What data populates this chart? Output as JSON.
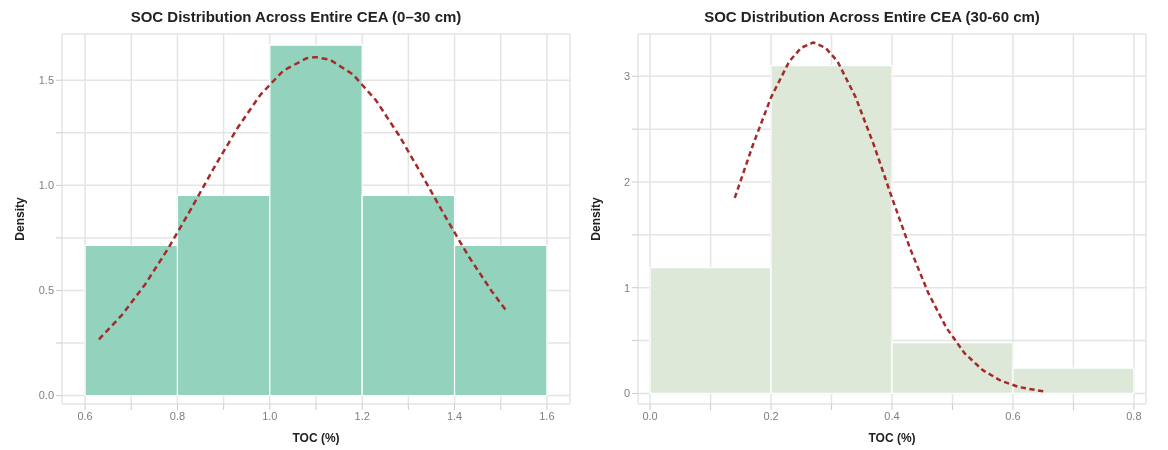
{
  "chart_data": [
    {
      "type": "histogram",
      "title": "SOC Distribution Across Entire CEA (0–30 cm)",
      "xlabel": "TOC (%)",
      "ylabel": "Density",
      "bins": [
        0.6,
        0.8,
        1.0,
        1.2,
        1.4,
        1.6
      ],
      "values": [
        0.714,
        0.952,
        1.667,
        0.952,
        0.714
      ],
      "color": "#93d3bd",
      "series": [
        {
          "type": "line",
          "color": "#a52a2a",
          "x": [
            0.63,
            0.68,
            0.73,
            0.78,
            0.83,
            0.88,
            0.93,
            0.98,
            1.03,
            1.08,
            1.1,
            1.13,
            1.18,
            1.23,
            1.28,
            1.33,
            1.38,
            1.43,
            1.48,
            1.51
          ],
          "values": [
            0.267,
            0.384,
            0.529,
            0.7,
            0.89,
            1.087,
            1.273,
            1.432,
            1.547,
            1.605,
            1.61,
            1.598,
            1.528,
            1.404,
            1.237,
            1.047,
            0.851,
            0.664,
            0.498,
            0.41
          ]
        }
      ],
      "line_style": "dashed",
      "grid": true,
      "xlim": [
        0.55,
        1.65
      ],
      "ylim": [
        -0.04,
        1.72
      ],
      "xticks": [
        {
          "value": 0.6,
          "label": "0.6"
        },
        {
          "value": 0.7,
          "label": null
        },
        {
          "value": 0.8,
          "label": "0.8"
        },
        {
          "value": 0.9,
          "label": null
        },
        {
          "value": 1.0,
          "label": "1.0"
        },
        {
          "value": 1.1,
          "label": null
        },
        {
          "value": 1.2,
          "label": "1.2"
        },
        {
          "value": 1.3,
          "label": null
        },
        {
          "value": 1.4,
          "label": "1.4"
        },
        {
          "value": 1.5,
          "label": null
        },
        {
          "value": 1.6,
          "label": "1.6"
        }
      ],
      "yticks": [
        {
          "value": 0,
          "label": "0.0"
        },
        {
          "value": 0.25,
          "label": null
        },
        {
          "value": 0.5,
          "label": "0.5"
        },
        {
          "value": 0.75,
          "label": null
        },
        {
          "value": 1.0,
          "label": "1.0"
        },
        {
          "value": 1.25,
          "label": null
        },
        {
          "value": 1.5,
          "label": "1.5"
        }
      ]
    },
    {
      "type": "histogram",
      "title": "SOC Distribution Across Entire CEA (30-60 cm)",
      "xlabel": "TOC (%)",
      "ylabel": "Density",
      "bins": [
        0.0,
        0.2,
        0.4,
        0.6,
        0.8
      ],
      "values": [
        1.19,
        3.1,
        0.48,
        0.24
      ],
      "color": "#dde8d8",
      "series": [
        {
          "type": "line",
          "color": "#a52a2a",
          "x": [
            0.14,
            0.17,
            0.2,
            0.23,
            0.25,
            0.27,
            0.29,
            0.31,
            0.34,
            0.37,
            0.4,
            0.43,
            0.46,
            0.49,
            0.52,
            0.55,
            0.58,
            0.61,
            0.65
          ],
          "values": [
            1.85,
            2.35,
            2.8,
            3.14,
            3.27,
            3.32,
            3.27,
            3.14,
            2.8,
            2.35,
            1.85,
            1.37,
            0.95,
            0.62,
            0.38,
            0.22,
            0.12,
            0.06,
            0.02
          ]
        }
      ],
      "line_style": "dashed",
      "grid": true,
      "xlim": [
        -0.02,
        0.82
      ],
      "ylim": [
        -0.1,
        3.4
      ],
      "xticks": [
        {
          "value": 0,
          "label": "0.0"
        },
        {
          "value": 0.1,
          "label": null
        },
        {
          "value": 0.2,
          "label": "0.2"
        },
        {
          "value": 0.3,
          "label": null
        },
        {
          "value": 0.4,
          "label": "0.4"
        },
        {
          "value": 0.5,
          "label": null
        },
        {
          "value": 0.6,
          "label": "0.6"
        },
        {
          "value": 0.7,
          "label": null
        },
        {
          "value": 0.8,
          "label": "0.8"
        }
      ],
      "yticks": [
        0,
        {
          "value": 0.5,
          "label": null
        },
        1,
        {
          "value": 1.5,
          "label": null
        },
        2,
        {
          "value": 2.5,
          "label": null
        },
        3
      ]
    }
  ]
}
